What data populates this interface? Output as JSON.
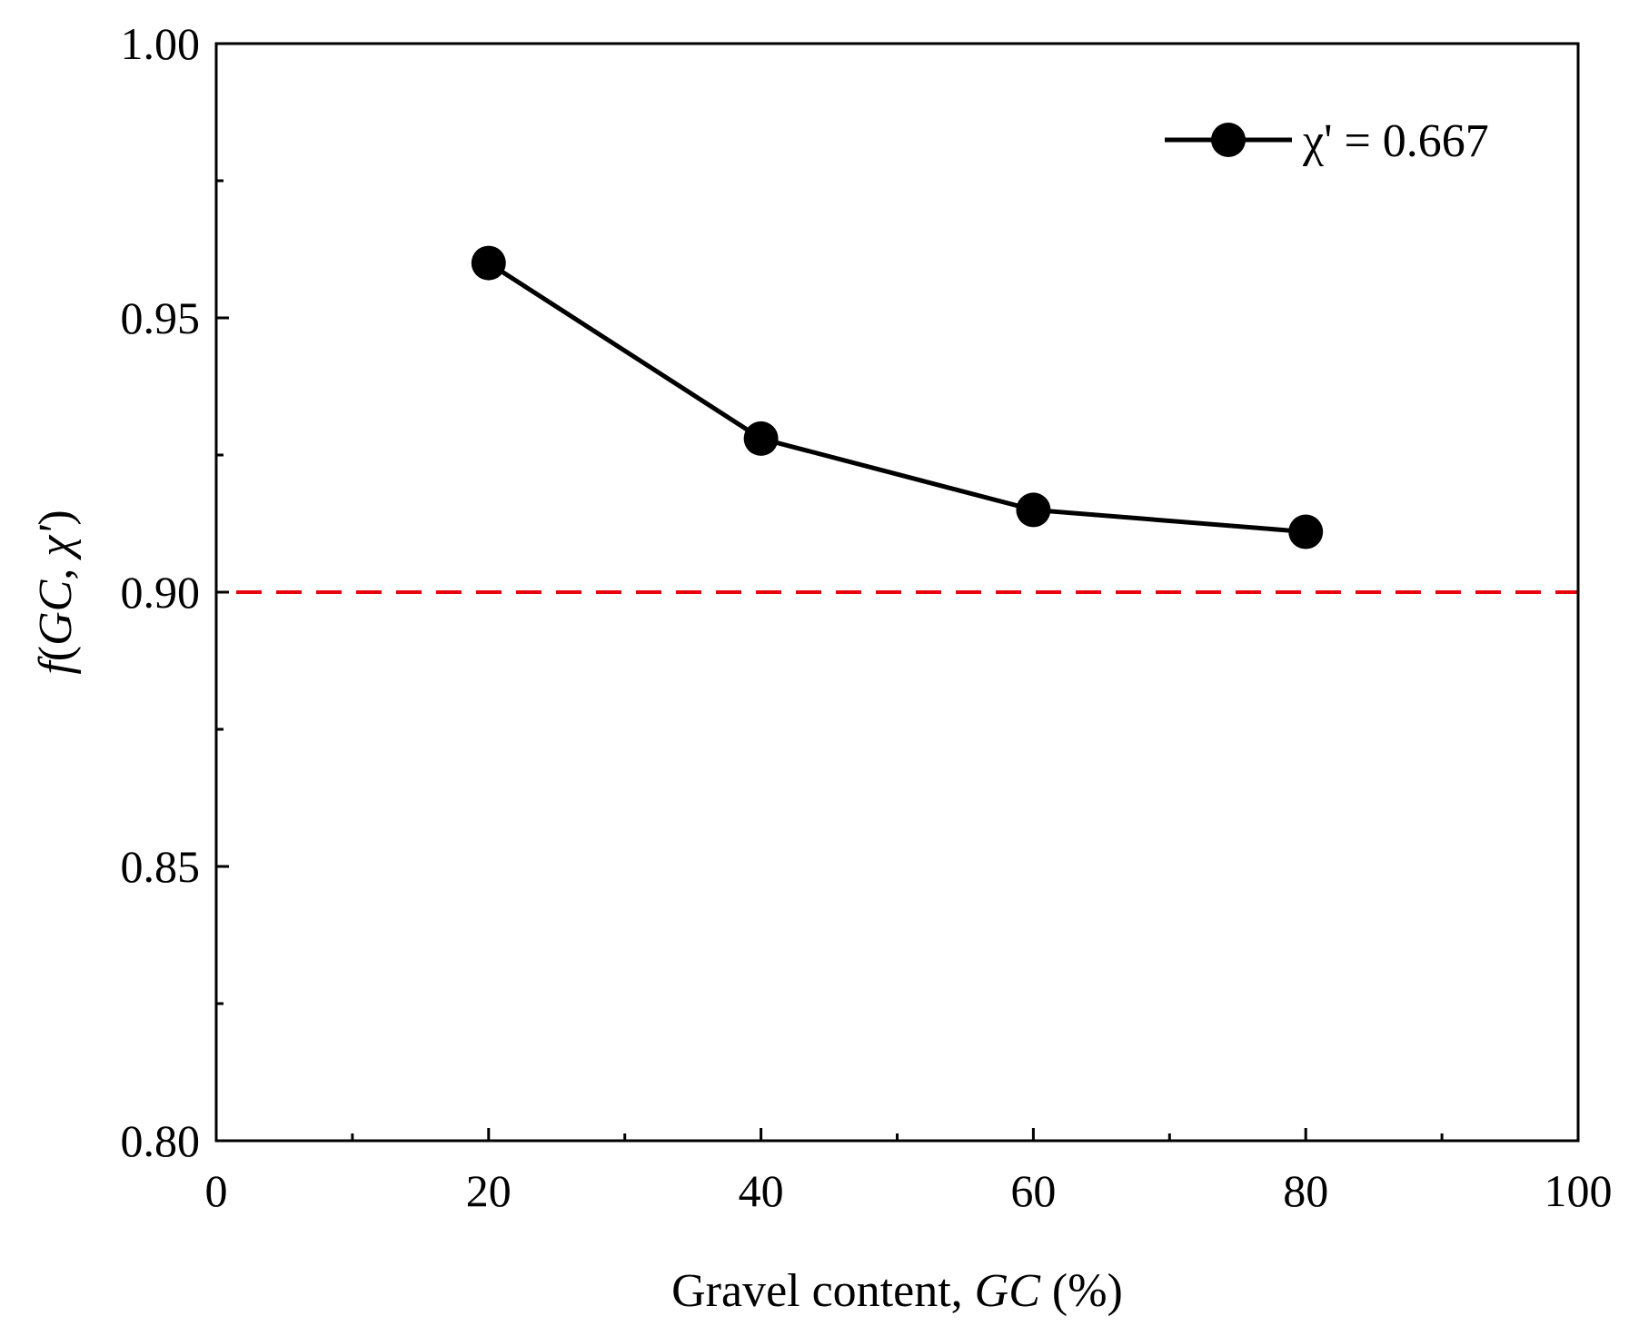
{
  "chart_data": {
    "type": "line",
    "xlabel": "Gravel content, GC (%)",
    "xlabel_parts": {
      "prefix": "Gravel content, ",
      "italic": "GC",
      "suffix": " (%)"
    },
    "ylabel": "f(GC, χ')",
    "ylabel_parts": {
      "f": "f",
      "open": "(",
      "gc": "GC",
      "comma": ", ",
      "chi": "χ'",
      "close": ")"
    },
    "xlim": [
      0,
      100
    ],
    "ylim": [
      0.8,
      1.0
    ],
    "x_major_ticks": [
      0,
      20,
      40,
      60,
      80,
      100
    ],
    "x_tick_labels": [
      "0",
      "20",
      "40",
      "60",
      "80",
      "100"
    ],
    "x_minor_ticks": [
      10,
      30,
      50,
      70,
      90
    ],
    "y_major_ticks": [
      0.8,
      0.85,
      0.9,
      0.95,
      1.0
    ],
    "y_tick_labels": [
      "0.80",
      "0.85",
      "0.90",
      "0.95",
      "1.00"
    ],
    "y_minor_ticks": [
      0.825,
      0.875,
      0.925,
      0.975
    ],
    "series": [
      {
        "name": "χ' = 0.667",
        "color": "#000000",
        "marker": "circle",
        "x": [
          20,
          40,
          60,
          80
        ],
        "y": [
          0.96,
          0.928,
          0.915,
          0.911
        ]
      }
    ],
    "reference_line": {
      "y": 0.9,
      "color": "#e8000b",
      "style": "dashed"
    },
    "legend": {
      "position": "top-right",
      "label": "χ' = 0.667"
    },
    "grid": false
  }
}
